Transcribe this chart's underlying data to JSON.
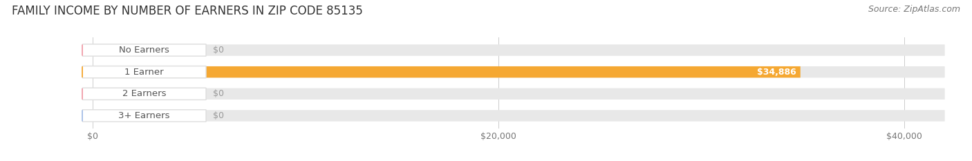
{
  "title": "FAMILY INCOME BY NUMBER OF EARNERS IN ZIP CODE 85135",
  "source": "Source: ZipAtlas.com",
  "categories": [
    "No Earners",
    "1 Earner",
    "2 Earners",
    "3+ Earners"
  ],
  "values": [
    0,
    34886,
    0,
    0
  ],
  "bar_colors": [
    "#f2a0ab",
    "#f5a832",
    "#f2a0ab",
    "#a8c0e8"
  ],
  "label_dot_colors": [
    "#f2a0ab",
    "#f5a832",
    "#f2a0ab",
    "#a8c0e8"
  ],
  "bar_bg_color": "#e8e8e8",
  "xlim_max": 42000,
  "xticks": [
    0,
    20000,
    40000
  ],
  "xtick_labels": [
    "$0",
    "$20,000",
    "$40,000"
  ],
  "value_label_color_bar": "#ffffff",
  "value_label_color_zero": "#999999",
  "background_color": "#ffffff",
  "title_fontsize": 12,
  "source_fontsize": 9,
  "bar_height": 0.52,
  "bar_label_fontsize": 9,
  "cat_label_fontsize": 9.5,
  "cat_text_color": "#555555",
  "label_pill_color": "#ffffff",
  "label_pill_border": "#dddddd"
}
